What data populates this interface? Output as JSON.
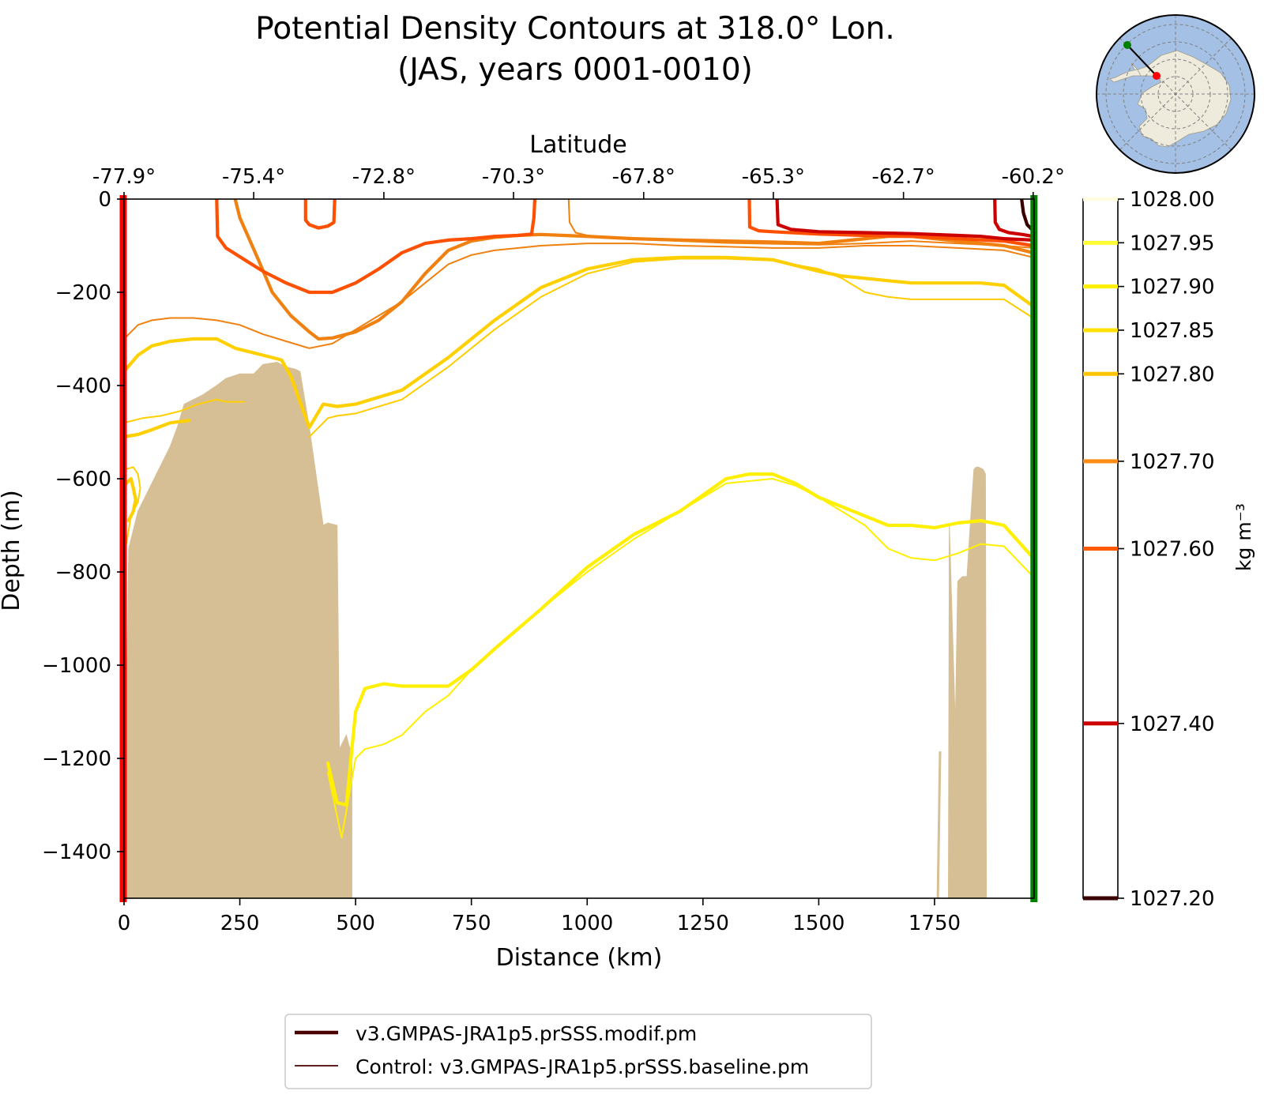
{
  "chart_data": {
    "type": "line",
    "subtype": "contour-section",
    "title": "Potential Density Contours at 318.0° Lon.",
    "subtitle": "(JAS, years 0001-0010)",
    "xlabel": "Distance (km)",
    "ylabel": "Depth (m)",
    "top_xlabel": "Latitude",
    "xlim": [
      0,
      1965
    ],
    "ylim": [
      -1500,
      0
    ],
    "x_ticks": [
      0,
      250,
      500,
      750,
      1000,
      1250,
      1500,
      1750
    ],
    "x_tick_labels": [
      "0",
      "250",
      "500",
      "750",
      "1000",
      "1250",
      "1500",
      "1750"
    ],
    "y_ticks": [
      0,
      -200,
      -400,
      -600,
      -800,
      -1000,
      -1200,
      -1400
    ],
    "y_tick_labels": [
      "0",
      "−200",
      "−400",
      "−600",
      "−800",
      "−1000",
      "−1200",
      "−1400"
    ],
    "top_ticks": [
      0,
      280,
      561,
      841,
      1122,
      1402,
      1683,
      1963
    ],
    "top_tick_labels": [
      "-77.9°",
      "-75.4°",
      "-72.8°",
      "-70.3°",
      "-67.8°",
      "-65.3°",
      "-62.7°",
      "-60.2°"
    ],
    "colorbar": {
      "label": "kg m⁻³",
      "min": 1027.2,
      "max": 1028.0,
      "levels": [
        1028.0,
        1027.95,
        1027.9,
        1027.85,
        1027.8,
        1027.7,
        1027.6,
        1027.4,
        1027.2
      ],
      "tick_labels": [
        "1028.00",
        "1027.95",
        "1027.90",
        "1027.85",
        "1027.80",
        "1027.70",
        "1027.60",
        "1027.40",
        "1027.20"
      ],
      "level_colors": [
        "#fffde0",
        "#ffff33",
        "#ffef00",
        "#ffe000",
        "#ffc400",
        "#ff8c14",
        "#ff5a00",
        "#cc0000",
        "#3a0000"
      ]
    },
    "legend": {
      "position": "below",
      "entries": [
        "v3.GMPAS-JRA1p5.prSSS.modif.pm",
        "Control: v3.GMPAS-JRA1p5.prSSS.baseline.pm"
      ],
      "color": "#4a0000"
    },
    "series": [
      {
        "name": "1027.90 modif",
        "level": 1027.9,
        "run": "modif",
        "color": "#ffef00",
        "x": [
          440,
          460,
          480,
          500,
          520,
          560,
          600,
          700,
          750,
          800,
          900,
          1000,
          1100,
          1200,
          1300,
          1350,
          1400,
          1450,
          1500,
          1600,
          1650,
          1700,
          1750,
          1800,
          1850,
          1900,
          1963
        ],
        "y": [
          -1210,
          -1295,
          -1300,
          -1100,
          -1050,
          -1040,
          -1045,
          -1045,
          -1010,
          -965,
          -880,
          -790,
          -720,
          -670,
          -600,
          -590,
          -590,
          -610,
          -640,
          -680,
          -700,
          -700,
          -705,
          -695,
          -690,
          -700,
          -770
        ]
      },
      {
        "name": "1027.90 control",
        "level": 1027.9,
        "run": "control",
        "color": "#ffef00",
        "x": [
          440,
          470,
          500,
          520,
          560,
          600,
          650,
          700,
          750,
          800,
          900,
          1000,
          1100,
          1200,
          1300,
          1400,
          1450,
          1500,
          1600,
          1650,
          1700,
          1750,
          1800,
          1850,
          1900,
          1963
        ],
        "y": [
          -1230,
          -1370,
          -1200,
          -1180,
          -1170,
          -1150,
          -1100,
          -1065,
          -1010,
          -965,
          -880,
          -800,
          -730,
          -670,
          -610,
          -600,
          -615,
          -640,
          -700,
          -750,
          -770,
          -775,
          -760,
          -740,
          -745,
          -810
        ]
      },
      {
        "name": "1027.85 modif",
        "level": 1027.85,
        "run": "modif",
        "color": "#ffd000",
        "x": [
          0,
          30,
          60,
          100,
          150,
          200,
          240,
          300,
          340,
          360,
          400,
          430,
          460,
          500,
          600,
          700,
          800,
          900,
          1000,
          1100,
          1200,
          1300,
          1400,
          1500,
          1550,
          1600,
          1650,
          1700,
          1750,
          1800,
          1850,
          1900,
          1963
        ],
        "y": [
          -370,
          -335,
          -315,
          -305,
          -300,
          -300,
          -320,
          -335,
          -345,
          -380,
          -490,
          -440,
          -445,
          -440,
          -410,
          -340,
          -260,
          -190,
          -150,
          -130,
          -125,
          -125,
          -130,
          -155,
          -165,
          -170,
          -175,
          -180,
          -180,
          -180,
          -180,
          -185,
          -230
        ]
      },
      {
        "name": "1027.85 control",
        "level": 1027.85,
        "run": "control",
        "color": "#ffcc00",
        "x": [
          400,
          440,
          460,
          500,
          600,
          700,
          800,
          900,
          1000,
          1100,
          1200,
          1300,
          1400,
          1500,
          1550,
          1600,
          1650,
          1700,
          1800,
          1900,
          1963
        ],
        "y": [
          -510,
          -470,
          -465,
          -460,
          -430,
          -360,
          -280,
          -210,
          -160,
          -135,
          -128,
          -128,
          -132,
          -150,
          -170,
          -200,
          -210,
          -215,
          -215,
          -215,
          -255
        ]
      },
      {
        "name": "1027.80 low control",
        "level": 1027.8,
        "run": "control",
        "color": "#ffd000",
        "x": [
          0,
          40,
          80,
          120,
          160,
          200,
          220,
          260
        ],
        "y": [
          -480,
          -470,
          -465,
          -455,
          -440,
          -430,
          -435,
          -435
        ]
      },
      {
        "name": "1027.80 low modif",
        "level": 1027.8,
        "run": "modif",
        "color": "#ffd000",
        "x": [
          0,
          30,
          60,
          100,
          140
        ],
        "y": [
          -510,
          -505,
          -495,
          -480,
          -475
        ]
      },
      {
        "name": "1027.80 patch control",
        "level": 1027.8,
        "run": "control",
        "color": "#ffd000",
        "x": [
          2,
          20,
          30,
          35,
          30,
          15,
          5
        ],
        "y": [
          -580,
          -575,
          -590,
          -620,
          -650,
          -680,
          -740
        ]
      },
      {
        "name": "1027.80 patch modif",
        "level": 1027.8,
        "run": "modif",
        "color": "#ffd000",
        "x": [
          5,
          15,
          20,
          25,
          20,
          10
        ],
        "y": [
          -610,
          -600,
          -620,
          -645,
          -670,
          -690
        ]
      },
      {
        "name": "1027.70 modif",
        "level": 1027.7,
        "run": "modif",
        "color": "#f08010",
        "x": [
          240,
          250,
          290,
          320,
          360,
          400,
          420,
          450,
          500,
          550,
          600,
          650,
          700,
          750,
          800,
          850,
          900,
          950,
          1000,
          1100,
          1200,
          1300,
          1400,
          1500,
          1550,
          1600,
          1650,
          1700,
          1750,
          1800,
          1850,
          1900,
          1963
        ],
        "y": [
          0,
          -40,
          -130,
          -200,
          -250,
          -285,
          -300,
          -298,
          -285,
          -260,
          -220,
          -160,
          -110,
          -90,
          -82,
          -78,
          -76,
          -78,
          -80,
          -85,
          -88,
          -90,
          -92,
          -95,
          -90,
          -85,
          -80,
          -80,
          -85,
          -90,
          -95,
          -100,
          -115
        ]
      },
      {
        "name": "1027.70 control",
        "level": 1027.7,
        "run": "control",
        "color": "#f08010",
        "x": [
          0,
          30,
          60,
          100,
          150,
          200,
          250,
          300,
          350,
          400,
          450,
          500,
          550,
          600,
          650,
          700,
          750,
          800,
          900,
          1000,
          1100,
          1200,
          1300,
          1400,
          1500,
          1600,
          1700,
          1800,
          1900,
          1963
        ],
        "y": [
          -300,
          -270,
          -260,
          -255,
          -255,
          -260,
          -270,
          -290,
          -305,
          -320,
          -310,
          -280,
          -250,
          -220,
          -180,
          -140,
          -120,
          -110,
          -100,
          -95,
          -95,
          -100,
          -102,
          -105,
          -105,
          -100,
          -100,
          -105,
          -110,
          -125
        ]
      },
      {
        "name": "1027.70 surface",
        "level": 1027.7,
        "run": "control",
        "color": "#f08010",
        "x": [
          960,
          962,
          975,
          1000,
          1100,
          1200,
          1300,
          1400,
          1500,
          1600,
          1700,
          1800,
          1900,
          1963
        ],
        "y": [
          0,
          -50,
          -72,
          -78,
          -85,
          -90,
          -94,
          -96,
          -98,
          -95,
          -90,
          -95,
          -100,
          -105
        ]
      },
      {
        "name": "1027.60 modif",
        "level": 1027.6,
        "run": "modif",
        "color": "#ff5000",
        "x": [
          200,
          202,
          220,
          260,
          300,
          350,
          400,
          450,
          500,
          550,
          600,
          650,
          700,
          750,
          800,
          850,
          880,
          885,
          887
        ],
        "y": [
          0,
          -80,
          -105,
          -130,
          -155,
          -180,
          -200,
          -200,
          -180,
          -150,
          -115,
          -95,
          -88,
          -85,
          -80,
          -78,
          -75,
          -40,
          0
        ]
      },
      {
        "name": "1027.60 bump",
        "level": 1027.6,
        "run": "modif",
        "color": "#ff5000",
        "x": [
          392,
          392,
          400,
          420,
          440,
          453,
          455
        ],
        "y": [
          0,
          -45,
          -55,
          -62,
          -58,
          -50,
          0
        ]
      },
      {
        "name": "1027.60 right",
        "level": 1027.6,
        "run": "modif",
        "color": "#ff5000",
        "x": [
          1350,
          1351,
          1370,
          1400,
          1500,
          1600,
          1700,
          1800,
          1900,
          1963
        ],
        "y": [
          0,
          -60,
          -68,
          -70,
          -75,
          -78,
          -80,
          -85,
          -90,
          -100
        ]
      },
      {
        "name": "1027.40 modif",
        "level": 1027.4,
        "run": "modif",
        "color": "#cc0000",
        "x": [
          1410,
          1412,
          1440,
          1500,
          1600,
          1700,
          1800,
          1850,
          1900,
          1963
        ],
        "y": [
          0,
          -55,
          -65,
          -70,
          -72,
          -74,
          -78,
          -80,
          -85,
          -88
        ]
      },
      {
        "name": "1027.40 hook",
        "level": 1027.4,
        "run": "modif",
        "color": "#cc0000",
        "x": [
          1880,
          1881,
          1890,
          1910,
          1940,
          1963
        ],
        "y": [
          0,
          -50,
          -65,
          -72,
          -76,
          -80
        ]
      },
      {
        "name": "1027.20 modif",
        "level": 1027.2,
        "run": "modif",
        "color": "#3a0000",
        "x": [
          1938,
          1942,
          1950,
          1960
        ],
        "y": [
          0,
          -30,
          -55,
          -65
        ]
      }
    ],
    "bathymetry": {
      "color": "#d7bf95",
      "left": {
        "x": [
          0,
          10,
          30,
          50,
          70,
          80,
          100,
          115,
          130,
          170,
          200,
          220,
          250,
          280,
          300,
          330,
          350,
          370,
          380,
          400,
          430,
          440,
          460,
          465,
          475,
          480,
          485,
          492,
          492
        ],
        "y": [
          -1500,
          -750,
          -670,
          -630,
          -590,
          -570,
          -530,
          -490,
          -440,
          -420,
          -400,
          -385,
          -375,
          -375,
          -355,
          -350,
          -360,
          -365,
          -370,
          -490,
          -700,
          -695,
          -700,
          -1180,
          -1160,
          -1150,
          -1170,
          -1190,
          -1500
        ]
      },
      "right": {
        "x": [
          1780,
          1782,
          1795,
          1800,
          1810,
          1820,
          1835,
          1840,
          1845,
          1855,
          1860,
          1862
        ],
        "y": [
          -1500,
          -700,
          -1130,
          -820,
          -810,
          -810,
          -580,
          -575,
          -575,
          -580,
          -590,
          -1500
        ]
      },
      "spike": {
        "x": [
          1757,
          1762
        ],
        "y": [
          -1500,
          -1185
        ]
      }
    },
    "section_markers": {
      "start_color": "#ff0000",
      "end_color": "#008000",
      "start_x": 0,
      "end_x": 1963
    },
    "inset_map": {
      "land_color": "#efebdc",
      "ocean_color": "#a4c0e4",
      "start_point_color": "#ff0000",
      "end_point_color": "#008000",
      "line_color": "#000000"
    }
  }
}
